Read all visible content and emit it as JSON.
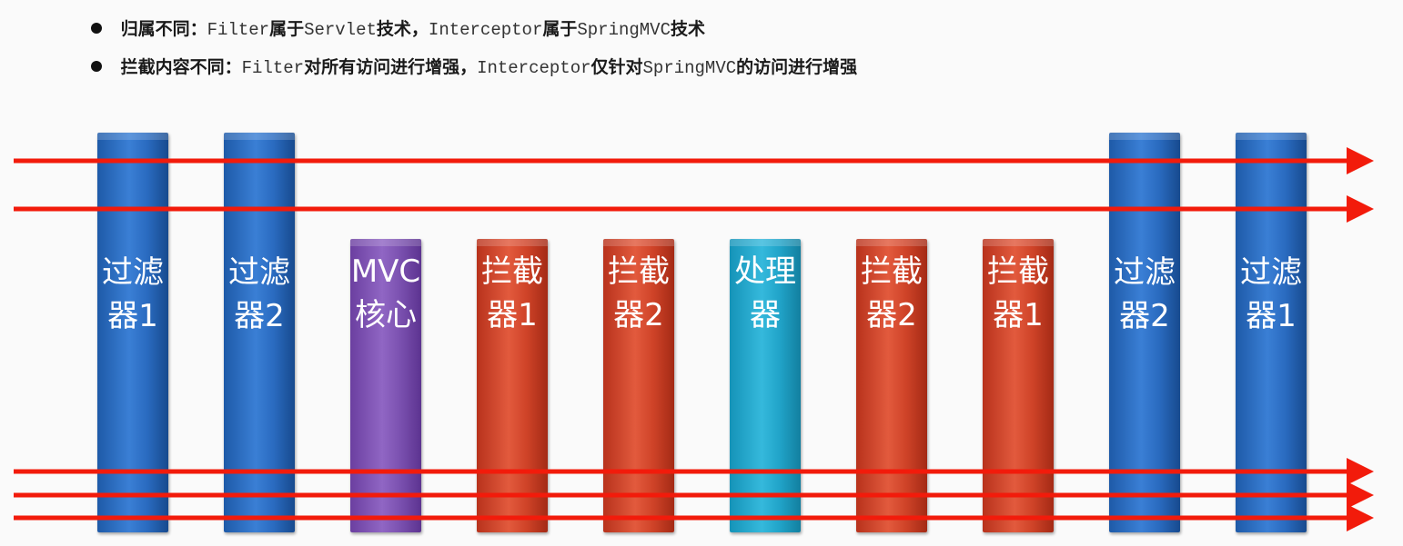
{
  "bullets": [
    {
      "segments": [
        {
          "text": "归属不同：",
          "mono": false
        },
        {
          "text": "Filter",
          "mono": true
        },
        {
          "text": "属于",
          "mono": false
        },
        {
          "text": "Servlet",
          "mono": true
        },
        {
          "text": "技术，",
          "mono": false
        },
        {
          "text": "Interceptor",
          "mono": true
        },
        {
          "text": "属于",
          "mono": false
        },
        {
          "text": "SpringMVC",
          "mono": true
        },
        {
          "text": "技术",
          "mono": false
        }
      ]
    },
    {
      "segments": [
        {
          "text": "拦截内容不同：",
          "mono": false
        },
        {
          "text": "Filter",
          "mono": true
        },
        {
          "text": "对所有访问进行增强，",
          "mono": false
        },
        {
          "text": "Interceptor",
          "mono": true
        },
        {
          "text": "仅针对",
          "mono": false
        },
        {
          "text": "SpringMVC",
          "mono": true
        },
        {
          "text": "的访问进行增强",
          "mono": false
        }
      ]
    }
  ],
  "diagram": {
    "bars": [
      {
        "label": "过滤器1",
        "kind": "filter",
        "color": "#2f6fc4"
      },
      {
        "label": "过滤器2",
        "kind": "filter",
        "color": "#2f6fc4"
      },
      {
        "label": "MVC核心",
        "kind": "mvc-core",
        "color": "#8359b8"
      },
      {
        "label": "拦截器1",
        "kind": "interceptor",
        "color": "#d9482c"
      },
      {
        "label": "拦截器2",
        "kind": "interceptor",
        "color": "#d9482c"
      },
      {
        "label": "处理器",
        "kind": "handler",
        "color": "#27a9cf"
      },
      {
        "label": "拦截器2",
        "kind": "interceptor",
        "color": "#d9482c"
      },
      {
        "label": "拦截器1",
        "kind": "interceptor",
        "color": "#d9482c"
      },
      {
        "label": "过滤器2",
        "kind": "filter",
        "color": "#2f6fc4"
      },
      {
        "label": "过滤器1",
        "kind": "filter",
        "color": "#2f6fc4"
      }
    ],
    "arrow_color": "#f21b0b",
    "arrow_count": 5
  }
}
